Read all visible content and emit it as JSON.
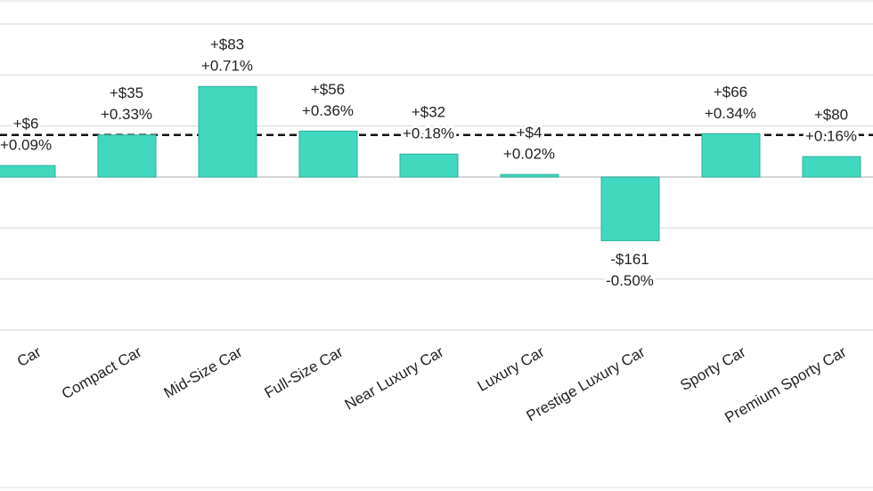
{
  "chart_data": {
    "type": "bar",
    "categories": [
      "Car",
      "Compact Car",
      "Mid-Size Car",
      "Full-Size Car",
      "Near Luxury Car",
      "Luxury Car",
      "Prestige Luxury Car",
      "Sporty Car",
      "Premium Sporty Car"
    ],
    "values": [
      0.09,
      0.33,
      0.71,
      0.36,
      0.18,
      0.02,
      -0.5,
      0.34,
      0.16
    ],
    "value_labels": [
      "+0.09%",
      "+0.33%",
      "+0.71%",
      "+0.36%",
      "+0.18%",
      "+0.02%",
      "-0.50%",
      "+0.34%",
      "+0.16%"
    ],
    "dollar_labels": [
      "+$6",
      "+$35",
      "+$83",
      "+$56",
      "+$32",
      "+$4",
      "-$161",
      "+$66",
      "+$80"
    ],
    "average": 0.33,
    "color": "#40d9bf",
    "ylim": [
      -1.2,
      1.2
    ],
    "yticks": [
      -1.2,
      -0.8,
      -0.4,
      0,
      0.4,
      0.8,
      1.2
    ],
    "grid": true
  }
}
